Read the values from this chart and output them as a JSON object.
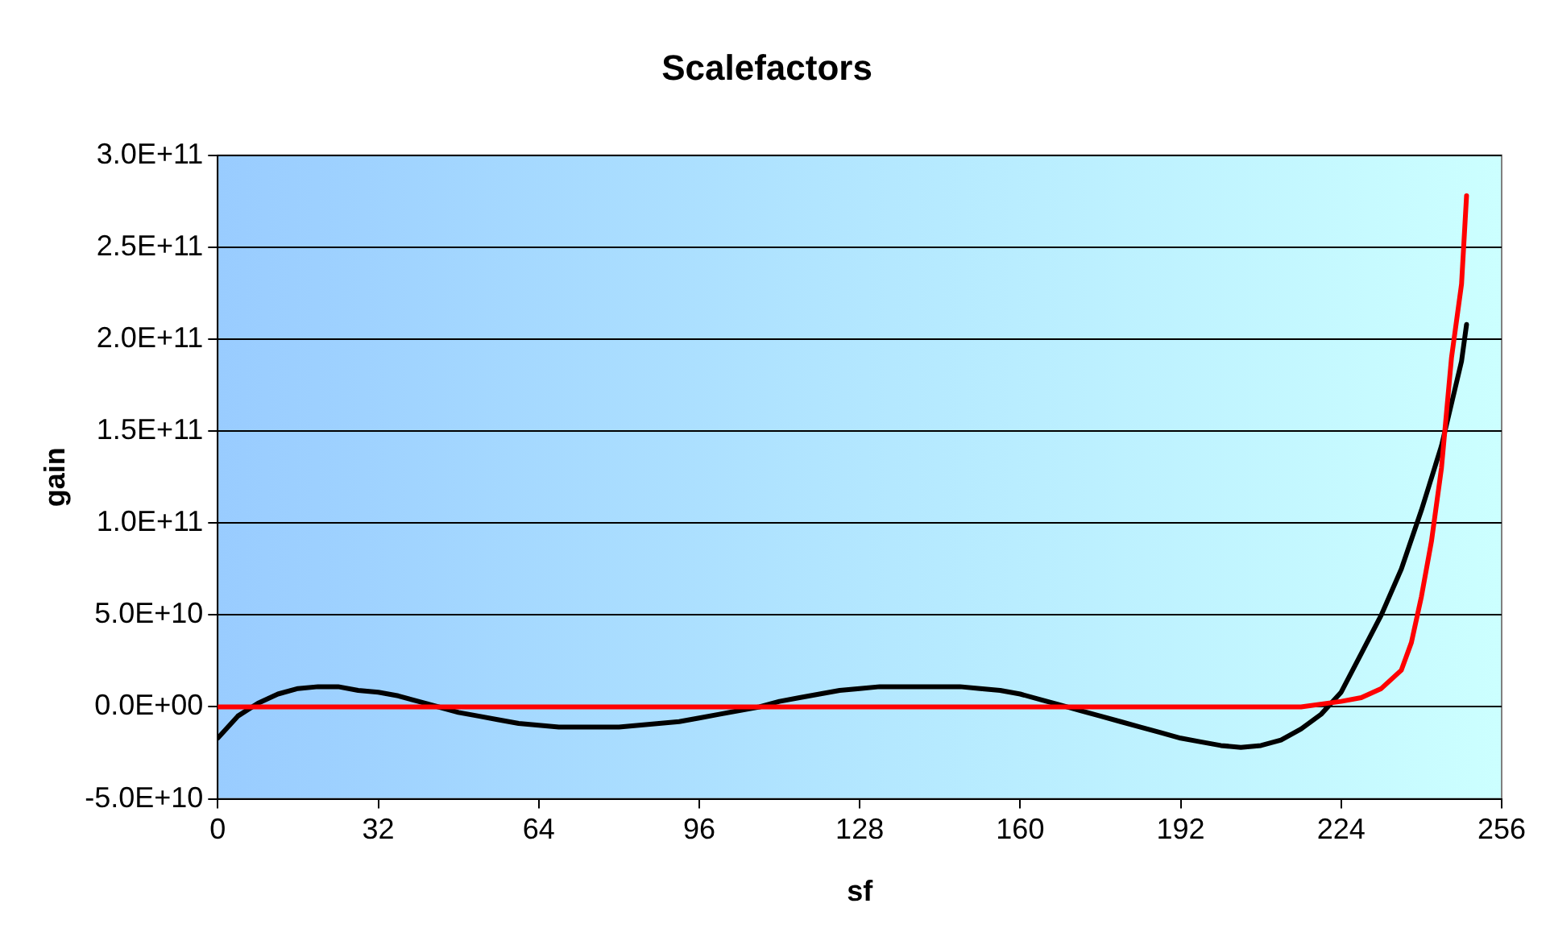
{
  "chart_data": {
    "type": "line",
    "title": "Scalefactors",
    "xlabel": "sf",
    "ylabel": "gain",
    "xlim": [
      0,
      256
    ],
    "xticks": [
      0,
      32,
      64,
      96,
      128,
      160,
      192,
      224,
      256
    ],
    "ylim": [
      -50000000000.0,
      300000000000.0
    ],
    "yticks": [
      {
        "value": -50000000000.0,
        "label": "-5.0E+10"
      },
      {
        "value": 0,
        "label": "0.0E+00"
      },
      {
        "value": 50000000000.0,
        "label": "5.0E+10"
      },
      {
        "value": 100000000000.0,
        "label": "1.0E+11"
      },
      {
        "value": 150000000000.0,
        "label": "1.5E+11"
      },
      {
        "value": 200000000000.0,
        "label": "2.0E+11"
      },
      {
        "value": 250000000000.0,
        "label": "2.5E+11"
      },
      {
        "value": 300000000000.0,
        "label": "3.0E+11"
      }
    ],
    "grid": "y",
    "legend": false,
    "marker": "none",
    "line_style": "solid",
    "series": [
      {
        "color": "#ff0000",
        "x": [
          0,
          216,
          224,
          228,
          232,
          236,
          238,
          240,
          242,
          244,
          246,
          248,
          249
        ],
        "values": [
          0,
          0,
          3000000000.0,
          5000000000.0,
          10000000000.0,
          20000000000.0,
          35000000000.0,
          60000000000.0,
          90000000000.0,
          130000000000.0,
          190000000000.0,
          230000000000.0,
          278000000000.0
        ]
      },
      {
        "color": "#000000",
        "x": [
          0,
          4,
          8,
          12,
          16,
          20,
          24,
          28,
          32,
          36,
          40,
          44,
          48,
          52,
          56,
          60,
          64,
          68,
          72,
          76,
          80,
          84,
          88,
          92,
          96,
          100,
          104,
          108,
          112,
          116,
          120,
          124,
          128,
          132,
          136,
          140,
          144,
          148,
          152,
          156,
          160,
          164,
          168,
          172,
          176,
          180,
          184,
          188,
          192,
          196,
          200,
          204,
          208,
          212,
          216,
          220,
          224,
          228,
          232,
          236,
          240,
          244,
          248,
          249
        ],
        "values": [
          -17000000000.0,
          -5000000000.0,
          2000000000.0,
          7000000000.0,
          10000000000.0,
          11000000000.0,
          11000000000.0,
          9000000000.0,
          8000000000.0,
          6000000000.0,
          3000000000.0,
          0,
          -3000000000.0,
          -5000000000.0,
          -7000000000.0,
          -9000000000.0,
          -10000000000.0,
          -11000000000.0,
          -11000000000.0,
          -11000000000.0,
          -11000000000.0,
          -10000000000.0,
          -9000000000.0,
          -8000000000.0,
          -6000000000.0,
          -4000000000.0,
          -2000000000.0,
          0,
          3000000000.0,
          5000000000.0,
          7000000000.0,
          9000000000.0,
          10000000000.0,
          11000000000.0,
          11000000000.0,
          11000000000.0,
          11000000000.0,
          11000000000.0,
          10000000000.0,
          9000000000.0,
          7000000000.0,
          4000000000.0,
          1000000000.0,
          -2000000000.0,
          -5000000000.0,
          -8000000000.0,
          -11000000000.0,
          -14000000000.0,
          -17000000000.0,
          -19000000000.0,
          -21000000000.0,
          -22000000000.0,
          -21000000000.0,
          -18000000000.0,
          -12000000000.0,
          -4000000000.0,
          8000000000.0,
          29000000000.0,
          50000000000.0,
          75000000000.0,
          107000000000.0,
          142000000000.0,
          188000000000.0,
          208000000000.0
        ]
      }
    ]
  }
}
